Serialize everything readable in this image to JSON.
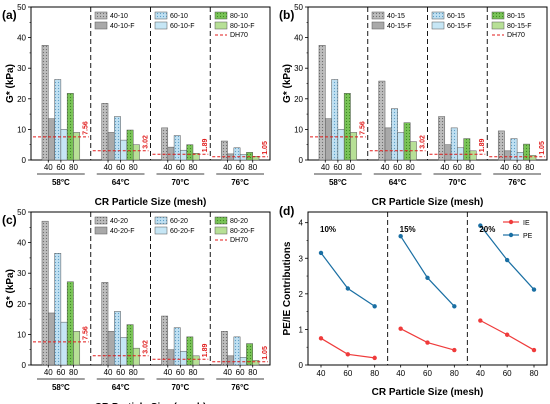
{
  "chart_data": [
    {
      "panel": "(a)",
      "type": "bar",
      "ylabel": "G* (kPa)",
      "xlabel": "CR Particle Size (mesh)",
      "ylim": [
        0,
        50
      ],
      "yticks": [
        0,
        10,
        20,
        30,
        40,
        50
      ],
      "groups": [
        "58°C",
        "64°C",
        "70°C",
        "76°C"
      ],
      "sizes": [
        "40",
        "60",
        "80"
      ],
      "legend": [
        [
          "40-10",
          "40-10-F"
        ],
        [
          "60-10",
          "60-10-F"
        ],
        [
          "80-10",
          "80-10-F"
        ]
      ],
      "dh_label": "DH70",
      "values": {
        "base": [
          [
            37.5,
            26.3,
            21.8
          ],
          [
            18.5,
            14.2,
            9.8
          ],
          [
            10.5,
            8.0,
            5.0
          ],
          [
            6.2,
            4.0,
            2.5
          ]
        ],
        "f": [
          [
            13.5,
            10.0,
            9.0
          ],
          [
            9.0,
            6.5,
            5.0
          ],
          [
            4.2,
            3.2,
            2.2
          ],
          [
            2.0,
            1.8,
            1.2
          ]
        ]
      },
      "dh_levels": [
        7.56,
        3.02,
        1.89,
        1.05
      ],
      "dh_labels": [
        "7.56",
        "3.02",
        "1.89",
        "1.05"
      ]
    },
    {
      "panel": "(b)",
      "type": "bar",
      "ylabel": "G* (kPa)",
      "xlabel": "CR Particle Size (mesh)",
      "ylim": [
        0,
        50
      ],
      "yticks": [
        0,
        10,
        20,
        30,
        40,
        50
      ],
      "groups": [
        "58°C",
        "64°C",
        "70°C",
        "76°C"
      ],
      "sizes": [
        "40",
        "60",
        "80"
      ],
      "legend": [
        [
          "40-15",
          "40-15-F"
        ],
        [
          "60-15",
          "60-15-F"
        ],
        [
          "80-15",
          "80-15-F"
        ]
      ],
      "dh_label": "DH70",
      "values": {
        "base": [
          [
            37.5,
            26.3,
            21.8
          ],
          [
            25.8,
            16.8,
            12.2
          ],
          [
            14.2,
            10.5,
            7.0
          ],
          [
            9.5,
            7.0,
            5.2
          ]
        ],
        "f": [
          [
            13.5,
            10.0,
            9.0
          ],
          [
            10.5,
            9.0,
            6.0
          ],
          [
            5.0,
            4.0,
            3.0
          ],
          [
            3.0,
            2.5,
            1.5
          ]
        ]
      },
      "dh_levels": [
        7.56,
        3.02,
        1.89,
        1.05
      ],
      "dh_labels": [
        "7.56",
        "3.02",
        "1.89",
        "1.05"
      ]
    },
    {
      "panel": "(c)",
      "type": "bar",
      "ylabel": "G* (kPa)",
      "xlabel": "CR Particle Size (mesh)",
      "ylim": [
        0,
        50
      ],
      "yticks": [
        0,
        10,
        20,
        30,
        40,
        50
      ],
      "groups": [
        "58°C",
        "64°C",
        "70°C",
        "76°C"
      ],
      "sizes": [
        "40",
        "60",
        "80"
      ],
      "legend": [
        [
          "40-20",
          "40-20-F"
        ],
        [
          "60-20",
          "60-20-F"
        ],
        [
          "80-20",
          "80-20-F"
        ]
      ],
      "dh_label": "DH70",
      "values": {
        "base": [
          [
            47.0,
            36.5,
            27.2
          ],
          [
            27.0,
            17.5,
            13.2
          ],
          [
            16.0,
            12.2,
            9.2
          ],
          [
            11.0,
            9.2,
            7.0
          ]
        ],
        "f": [
          [
            17.0,
            14.0,
            11.0
          ],
          [
            11.0,
            9.0,
            5.5
          ],
          [
            5.0,
            4.5,
            3.0
          ],
          [
            3.0,
            2.5,
            1.5
          ]
        ]
      },
      "dh_levels": [
        7.56,
        3.02,
        1.89,
        1.05
      ],
      "dh_labels": [
        "7.56",
        "3.02",
        "1.89",
        "1.05"
      ]
    },
    {
      "panel": "(d)",
      "type": "line",
      "ylabel": "PE/IE Contributions",
      "xlabel": "CR Particle Size (mesh)",
      "ylim": [
        0,
        4.3
      ],
      "yticks": [
        0,
        1,
        2,
        3,
        4
      ],
      "segments": [
        "10%",
        "15%",
        "20%"
      ],
      "x_labels": [
        "40",
        "60",
        "80"
      ],
      "series": [
        {
          "name": "IE",
          "color": "#ef3b3b",
          "values": [
            [
              0.75,
              0.3,
              0.2
            ],
            [
              1.02,
              0.63,
              0.42
            ],
            [
              1.25,
              0.85,
              0.42
            ]
          ]
        },
        {
          "name": "PE",
          "color": "#1a6fa3",
          "values": [
            [
              3.15,
              2.15,
              1.65
            ],
            [
              3.62,
              2.45,
              1.65
            ],
            [
              3.92,
              2.95,
              2.12
            ]
          ]
        }
      ]
    }
  ]
}
